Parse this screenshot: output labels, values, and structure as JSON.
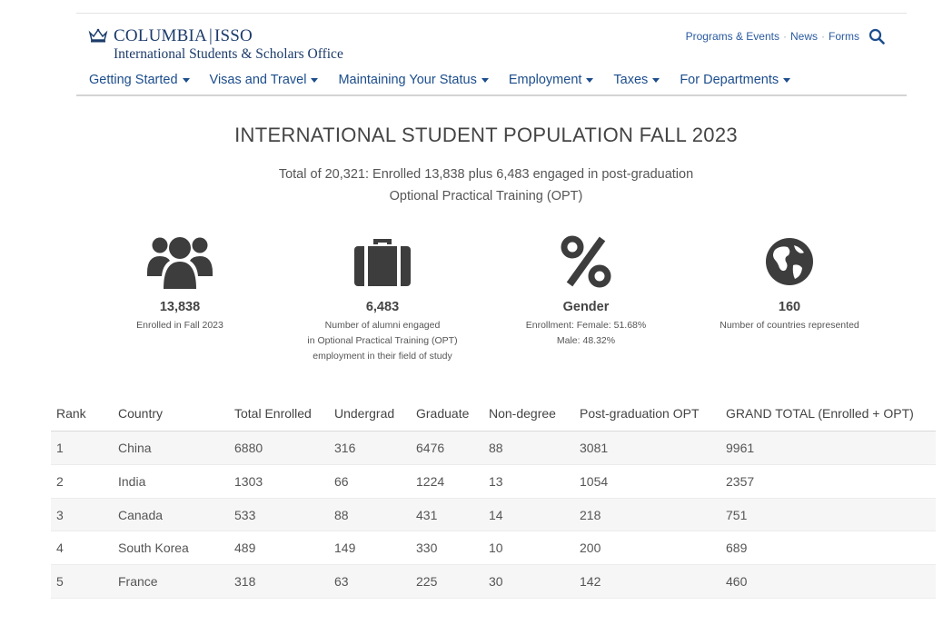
{
  "header": {
    "logo": {
      "name": "COLUMBIA",
      "sep": "|",
      "org": "ISSO",
      "subtitle": "International Students & Scholars Office"
    },
    "util_links": [
      "Programs & Events",
      "News",
      "Forms"
    ],
    "util_sep": "·",
    "nav": [
      "Getting Started",
      "Visas and Travel",
      "Maintaining Your Status",
      "Employment",
      "Taxes",
      "For Departments"
    ]
  },
  "page": {
    "title": "INTERNATIONAL STUDENT POPULATION FALL 2023",
    "subtitle_line1": "Total of 20,321: Enrolled 13,838 plus 6,483 engaged in post-graduation",
    "subtitle_line2": "Optional Practical Training (OPT)"
  },
  "stats": [
    {
      "icon": "users-icon",
      "value": "13,838",
      "desc": [
        "Enrolled in Fall 2023"
      ]
    },
    {
      "icon": "briefcase-icon",
      "value": "6,483",
      "desc": [
        "Number of alumni engaged",
        "in Optional Practical Training (OPT)",
        "employment in their field of study"
      ]
    },
    {
      "icon": "percent-icon",
      "value": "Gender",
      "desc": [
        "Enrollment: Female: 51.68%",
        "Male: 48.32%"
      ]
    },
    {
      "icon": "globe-icon",
      "value": "160",
      "desc": [
        "Number of countries represented"
      ]
    }
  ],
  "table": {
    "headers": [
      "Rank",
      "Country",
      "Total Enrolled",
      "Undergrad",
      "Graduate",
      "Non-degree",
      "Post-graduation OPT",
      "GRAND TOTAL (Enrolled + OPT)"
    ],
    "rows": [
      [
        "1",
        "China",
        "6880",
        "316",
        "6476",
        "88",
        "3081",
        "9961"
      ],
      [
        "2",
        "India",
        "1303",
        "66",
        "1224",
        "13",
        "1054",
        "2357"
      ],
      [
        "3",
        "Canada",
        "533",
        "88",
        "431",
        "14",
        "218",
        "751"
      ],
      [
        "4",
        "South Korea",
        "489",
        "149",
        "330",
        "10",
        "200",
        "689"
      ],
      [
        "5",
        "France",
        "318",
        "63",
        "225",
        "30",
        "142",
        "460"
      ]
    ]
  },
  "colors": {
    "brand": "#1c3b6b",
    "link": "#2a5aa0",
    "icon": "#3d3d3d"
  }
}
